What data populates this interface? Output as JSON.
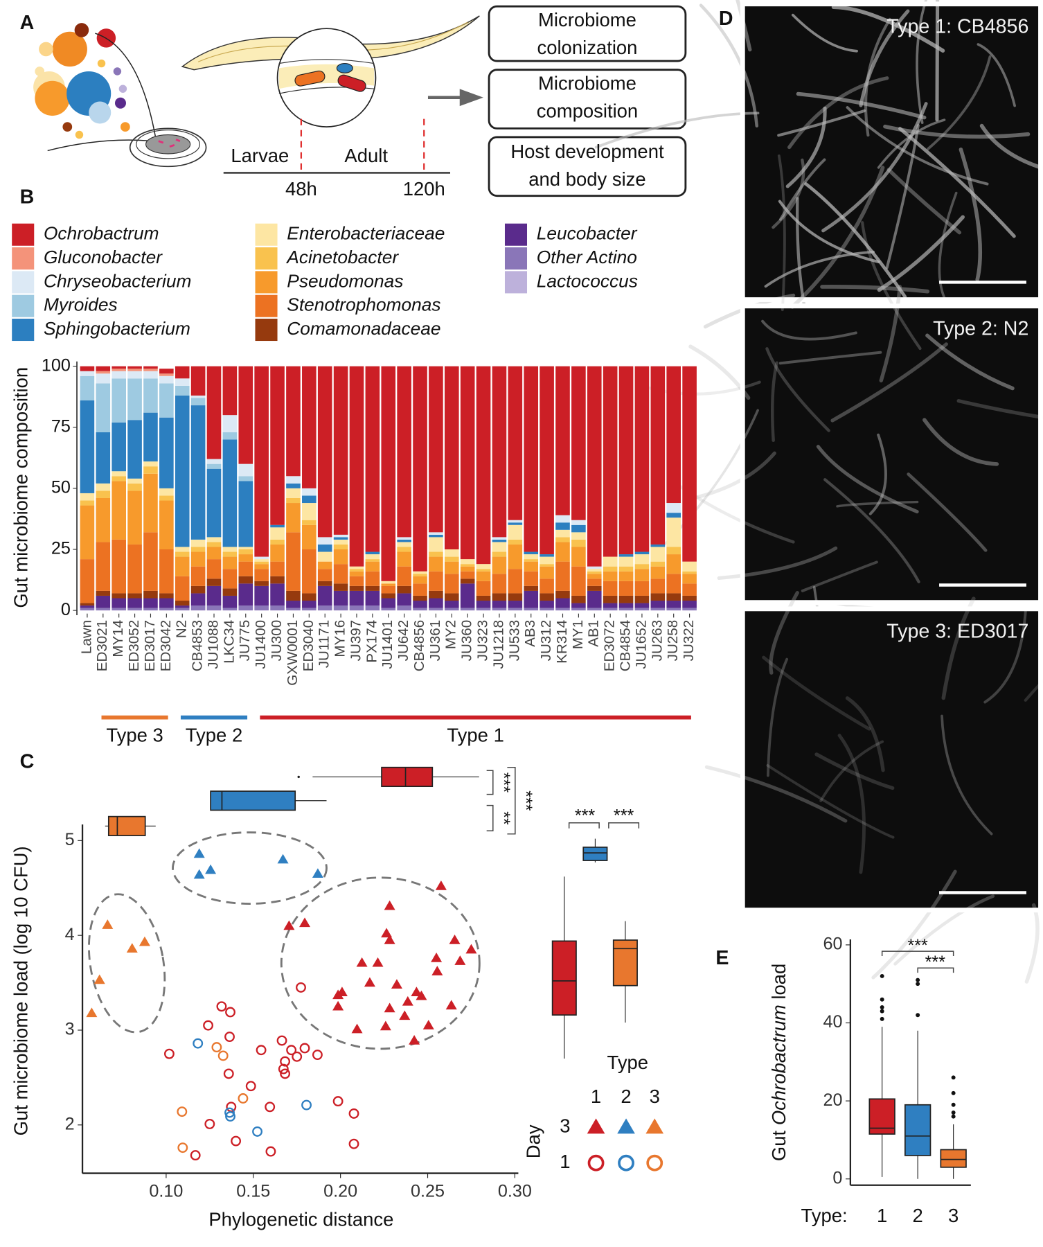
{
  "panel_labels": [
    "A",
    "B",
    "C",
    "D",
    "E"
  ],
  "diagram": {
    "stages": [
      "Larvae",
      "Adult"
    ],
    "times": [
      "48h",
      "120h"
    ],
    "boxes": [
      [
        "Microbiome",
        "colonization"
      ],
      [
        "Microbiome",
        "composition"
      ],
      [
        "Host development",
        "and body size"
      ]
    ]
  },
  "chart_data": [
    {
      "type": "stacked_bar",
      "ylabel": "Gut microbiome composition",
      "categories": [
        "Lawn",
        "ED3021",
        "MY14",
        "ED3052",
        "ED3017",
        "ED3042",
        "N2",
        "CB4853",
        "JU1088",
        "LKC34",
        "JU775",
        "JU1400",
        "JU300",
        "GXW0001",
        "ED3040",
        "JU1171",
        "MY16",
        "JU397",
        "PX174",
        "JU1401",
        "JU642",
        "CB4856",
        "JU361",
        "MY2",
        "JU360",
        "JU323",
        "JU1218",
        "JU533",
        "AB3",
        "JU312",
        "KR314",
        "MY1",
        "AB1",
        "ED3072",
        "CB4854",
        "JU1652",
        "JU263",
        "JU258",
        "JU322"
      ],
      "series": [
        {
          "name": "Ochrobactrum",
          "color": "#cc1f26",
          "values": [
            2,
            2,
            1,
            1,
            1,
            2,
            5,
            12,
            38,
            20,
            40,
            78,
            65,
            45,
            50,
            70,
            69,
            82,
            76,
            88,
            70,
            84,
            68,
            75,
            79,
            81,
            70,
            63,
            76,
            77,
            61,
            63,
            82,
            78,
            77,
            76,
            73,
            56,
            80
          ]
        },
        {
          "name": "Gluconobacter",
          "color": "#f4937a",
          "values": [
            0,
            1,
            1,
            1,
            1,
            1,
            0,
            0,
            0,
            0,
            0,
            0,
            0,
            0,
            0,
            0,
            0,
            0,
            0,
            0,
            0,
            0,
            0,
            0,
            0,
            0,
            0,
            0,
            0,
            0,
            0,
            0,
            0,
            0,
            0,
            0,
            0,
            0,
            0
          ]
        },
        {
          "name": "Chryseobacterium",
          "color": "#dce9f5",
          "values": [
            2,
            4,
            3,
            3,
            3,
            3,
            3,
            1,
            2,
            7,
            5,
            1,
            0,
            3,
            3,
            3,
            1,
            0,
            0,
            0,
            1,
            0,
            1,
            0,
            0,
            0,
            1,
            1,
            0,
            0,
            3,
            2,
            1,
            0,
            0,
            0,
            0,
            4,
            0
          ]
        },
        {
          "name": "Myroides",
          "color": "#9ecae1",
          "values": [
            10,
            20,
            18,
            17,
            14,
            14,
            4,
            3,
            2,
            3,
            2,
            0,
            0,
            0,
            0,
            0,
            0,
            0,
            0,
            0,
            0,
            0,
            0,
            0,
            0,
            0,
            0,
            0,
            0,
            0,
            0,
            0,
            0,
            0,
            0,
            0,
            0,
            0,
            0
          ]
        },
        {
          "name": "Sphingobacterium",
          "color": "#2c7fc0",
          "values": [
            38,
            21,
            20,
            24,
            20,
            29,
            62,
            55,
            28,
            44,
            27,
            0,
            1,
            2,
            3,
            3,
            1,
            0,
            1,
            0,
            1,
            0,
            1,
            0,
            0,
            0,
            1,
            1,
            1,
            1,
            3,
            3,
            0,
            0,
            1,
            1,
            1,
            2,
            0
          ]
        },
        {
          "name": "Enterobacteriaceae",
          "color": "#fde6a3",
          "values": [
            3,
            3,
            2,
            2,
            2,
            3,
            2,
            3,
            2,
            2,
            1,
            1,
            5,
            4,
            7,
            4,
            2,
            1,
            2,
            1,
            2,
            1,
            6,
            3,
            2,
            2,
            4,
            6,
            2,
            3,
            3,
            3,
            1,
            4,
            4,
            4,
            6,
            12,
            4
          ]
        },
        {
          "name": "Acinetobacter",
          "color": "#f9c24e",
          "values": [
            2,
            3,
            2,
            3,
            3,
            2,
            2,
            2,
            2,
            2,
            2,
            1,
            2,
            2,
            2,
            0,
            2,
            1,
            1,
            0,
            2,
            1,
            2,
            2,
            1,
            1,
            2,
            2,
            1,
            1,
            2,
            3,
            1,
            2,
            2,
            2,
            2,
            3,
            1
          ]
        },
        {
          "name": "Pseudomonas",
          "color": "#f79a2c",
          "values": [
            22,
            18,
            24,
            22,
            24,
            20,
            8,
            6,
            5,
            5,
            3,
            2,
            7,
            12,
            10,
            3,
            6,
            2,
            4,
            1,
            6,
            3,
            6,
            5,
            2,
            4,
            7,
            10,
            4,
            5,
            8,
            8,
            2,
            4,
            4,
            5,
            5,
            8,
            4
          ]
        },
        {
          "name": "Stenotrophomonas",
          "color": "#ec7222",
          "values": [
            18,
            20,
            22,
            20,
            24,
            18,
            10,
            8,
            8,
            8,
            6,
            5,
            6,
            24,
            18,
            5,
            8,
            4,
            6,
            3,
            8,
            5,
            8,
            8,
            3,
            6,
            8,
            10,
            6,
            6,
            12,
            12,
            3,
            6,
            6,
            6,
            6,
            8,
            5
          ]
        },
        {
          "name": "Comamonadaceae",
          "color": "#963a0e",
          "values": [
            1,
            2,
            2,
            2,
            3,
            2,
            2,
            3,
            3,
            3,
            3,
            2,
            3,
            4,
            3,
            2,
            3,
            2,
            2,
            2,
            3,
            2,
            3,
            3,
            2,
            2,
            3,
            3,
            2,
            3,
            3,
            3,
            2,
            3,
            3,
            3,
            3,
            3,
            2
          ]
        },
        {
          "name": "Leucobacter",
          "color": "#5a2b8c",
          "values": [
            1,
            5,
            4,
            4,
            4,
            4,
            1,
            5,
            8,
            5,
            9,
            8,
            9,
            3,
            3,
            8,
            6,
            6,
            6,
            4,
            5,
            3,
            4,
            3,
            10,
            3,
            3,
            3,
            7,
            3,
            4,
            2,
            7,
            2,
            2,
            2,
            3,
            3,
            3
          ]
        },
        {
          "name": "Other Actino",
          "color": "#8a76b8",
          "values": [
            1,
            1,
            1,
            1,
            1,
            1,
            1,
            2,
            2,
            1,
            2,
            2,
            2,
            1,
            1,
            2,
            2,
            2,
            2,
            1,
            2,
            1,
            1,
            1,
            1,
            1,
            1,
            1,
            1,
            1,
            1,
            1,
            1,
            1,
            1,
            1,
            1,
            1,
            1
          ]
        },
        {
          "name": "Lactococcus",
          "color": "#bdb1db",
          "values": [
            0,
            0,
            0,
            0,
            0,
            0,
            0,
            0,
            0,
            0,
            0,
            0,
            0,
            0,
            0,
            0,
            0,
            0,
            0,
            0,
            0,
            0,
            0,
            0,
            0,
            0,
            0,
            0,
            0,
            0,
            0,
            0,
            0,
            0,
            0,
            0,
            0,
            0,
            0
          ]
        }
      ],
      "ylim": [
        0,
        100
      ],
      "yticks": [
        0,
        25,
        50,
        75,
        100
      ],
      "groups": [
        {
          "label": "Type 3",
          "color": "#e8772e"
        },
        {
          "label": "Type 2",
          "color": "#2f7fc1"
        },
        {
          "label": "Type 1",
          "color": "#cc1f26"
        }
      ]
    },
    {
      "type": "scatter",
      "xlabel": "Phylogenetic distance",
      "ylabel": "Gut microbiome load (log 10 CFU)",
      "xlim": [
        0.052,
        0.302
      ],
      "ylim": [
        1.49,
        5.17
      ],
      "xticks": [
        {
          "value": 0.1,
          "label": "0.10"
        },
        {
          "value": 0.15,
          "label": "0.15"
        },
        {
          "value": 0.2,
          "label": "0.20"
        },
        {
          "value": 0.25,
          "label": "0.25"
        },
        {
          "value": 0.3,
          "label": "0.30"
        }
      ],
      "yticks": [
        2,
        3,
        4,
        5
      ],
      "legend_title": "Type",
      "day_title": "Day",
      "series": [
        {
          "day": "3",
          "marker": "triangle",
          "groups": [
            {
              "type": "1",
              "color": "#cc1f26",
              "x": [
                0.2577,
                0.2282,
                0.1705,
                0.1795,
                0.2264,
                0.2282,
                0.2655,
                0.275,
                0.2123,
                0.2214,
                0.255,
                0.2555,
                0.2686,
                0.2168,
                0.2009,
                0.2323,
                0.2436,
                0.1986,
                0.2282,
                0.2386,
                0.2464,
                0.2636,
                0.2368,
                0.2259,
                0.2505,
                0.2423,
                0.2095,
                0.1986
              ],
              "y": [
                4.52,
                4.31,
                4.1,
                4.13,
                4.02,
                3.95,
                3.95,
                3.85,
                3.71,
                3.71,
                3.76,
                3.62,
                3.73,
                3.5,
                3.4,
                3.48,
                3.4,
                3.25,
                3.23,
                3.3,
                3.36,
                3.26,
                3.15,
                3.04,
                3.05,
                2.89,
                3.01,
                3.37
              ]
            },
            {
              "type": "2",
              "color": "#2f7fc1",
              "x": [
                0.119,
                0.119,
                0.1255,
                0.167,
                0.187
              ],
              "y": [
                4.86,
                4.64,
                4.69,
                4.8,
                4.65
              ]
            },
            {
              "type": "3",
              "color": "#e8772e",
              "x": [
                0.0664,
                0.0805,
                0.0877,
                0.0618,
                0.0573
              ],
              "y": [
                4.11,
                3.86,
                3.93,
                3.53,
                3.18
              ]
            }
          ]
        },
        {
          "day": "1",
          "marker": "circle",
          "groups": [
            {
              "type": "1",
              "color": "#cc1f26",
              "x": [
                0.1018,
                0.1318,
                0.1368,
                0.1241,
                0.1773,
                0.1364,
                0.1545,
                0.1664,
                0.1718,
                0.1795,
                0.1682,
                0.1673,
                0.1682,
                0.1868,
                0.175,
                0.1486,
                0.1373,
                0.1595,
                0.1359,
                0.14,
                0.125,
                0.1168,
                0.16,
                0.1986,
                0.2077,
                0.2077
              ],
              "y": [
                2.75,
                3.25,
                3.19,
                3.05,
                3.45,
                2.93,
                2.79,
                2.89,
                2.79,
                2.81,
                2.67,
                2.59,
                2.54,
                2.74,
                2.72,
                2.41,
                2.19,
                2.19,
                2.54,
                1.83,
                2.01,
                1.68,
                1.72,
                2.25,
                2.12,
                1.8
              ]
            },
            {
              "type": "2",
              "color": "#2f7fc1",
              "x": [
                0.1182,
                0.1364,
                0.1368,
                0.1523,
                0.1805
              ],
              "y": [
                2.86,
                2.13,
                2.09,
                1.93,
                2.21
              ]
            },
            {
              "type": "3",
              "color": "#e8772e",
              "x": [
                0.129,
                0.1327,
                0.1441,
                0.1091,
                0.1095
              ],
              "y": [
                2.82,
                2.73,
                2.28,
                2.14,
                1.76
              ]
            }
          ]
        }
      ],
      "x_boxplots": [
        {
          "color": "#cc1f26",
          "min": 0.184,
          "q1": 0.2236,
          "median": 0.2373,
          "q3": 0.2527,
          "max": 0.2795,
          "outliers": [
            0.176
          ]
        },
        {
          "color": "#2f7fc1",
          "min": 0.1255,
          "q1": 0.1255,
          "median": 0.132,
          "q3": 0.174,
          "max": 0.192,
          "outliers": []
        },
        {
          "color": "#e8772e",
          "min": 0.065,
          "q1": 0.067,
          "median": 0.072,
          "q3": 0.088,
          "max": 0.094,
          "outliers": []
        }
      ],
      "y_boxplots": [
        {
          "color": "#cc1f26",
          "min": 2.7,
          "q1": 3.16,
          "median": 3.52,
          "q3": 3.94,
          "max": 4.62,
          "outliers": []
        },
        {
          "color": "#2f7fc1",
          "min": 4.77,
          "q1": 4.79,
          "median": 4.87,
          "q3": 4.93,
          "max": 5.02,
          "outliers": []
        },
        {
          "color": "#e8772e",
          "min": 3.08,
          "q1": 3.47,
          "median": 3.86,
          "q3": 3.95,
          "max": 4.15,
          "outliers": []
        }
      ],
      "x_significance": [
        "***",
        "**",
        "***"
      ],
      "y_significance": [
        "***",
        "***"
      ]
    },
    {
      "type": "boxplot",
      "ylabel_parts": [
        "Gut ",
        "Ochrobactrum",
        " load"
      ],
      "xlabel": "Type:",
      "categories": [
        "1",
        "2",
        "3"
      ],
      "colors": [
        "#cc1f26",
        "#2f7fc1",
        "#e8772e"
      ],
      "boxes": [
        {
          "min": 0.5,
          "q1": 11.5,
          "median": 13,
          "q3": 20.5,
          "max": 39,
          "outliers": [
            41,
            43,
            44,
            46,
            52
          ]
        },
        {
          "min": 0,
          "q1": 6,
          "median": 11,
          "q3": 19,
          "max": 38,
          "outliers": [
            42,
            50,
            51
          ]
        },
        {
          "min": 0,
          "q1": 3,
          "median": 5,
          "q3": 7.5,
          "max": 14,
          "outliers": [
            16,
            17,
            19,
            22,
            26
          ]
        }
      ],
      "ylim": [
        -1.6,
        61.4
      ],
      "yticks": [
        0,
        20,
        40,
        60
      ],
      "significance": [
        "***",
        "***"
      ]
    }
  ],
  "images": [
    {
      "label": "Type 1: CB4856"
    },
    {
      "label": "Type 2: N2"
    },
    {
      "label": "Type 3: ED3017"
    }
  ]
}
